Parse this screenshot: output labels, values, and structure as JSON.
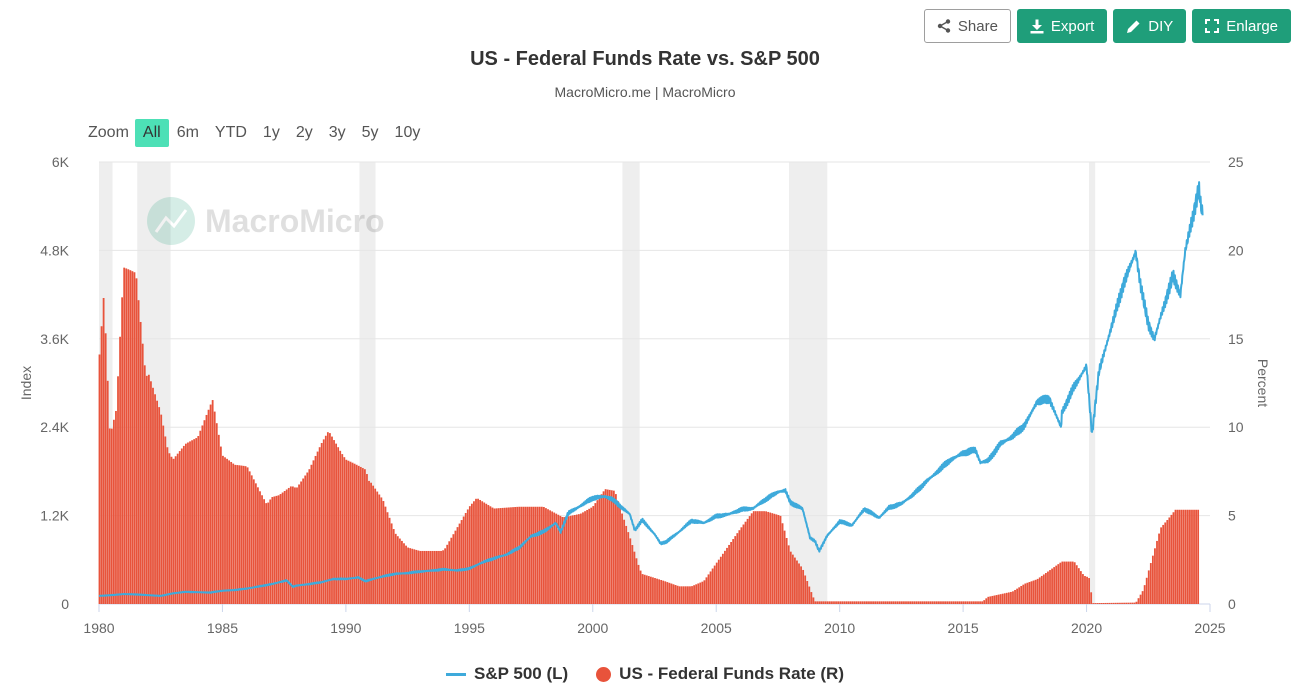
{
  "toolbar": {
    "share_label": "Share",
    "export_label": "Export",
    "diy_label": "DIY",
    "enlarge_label": "Enlarge"
  },
  "zoom": {
    "label": "Zoom",
    "options": [
      "All",
      "6m",
      "YTD",
      "1y",
      "2y",
      "3y",
      "5y",
      "10y"
    ],
    "active": "All"
  },
  "watermark": "MacroMicro",
  "colors": {
    "sp500": "#3eaadb",
    "fed_funds": "#e8533b",
    "recession": "#eeeeee",
    "accent": "#1f9e7a",
    "zoom_active": "#4de0b6"
  },
  "chart_data": {
    "type": "line",
    "title": "US - Federal Funds Rate vs. S&P 500",
    "subtitle": "MacroMicro.me | MacroMicro",
    "y_left_label": "Index",
    "y_right_label": "Percent",
    "x_ticks": [
      "1980",
      "1985",
      "1990",
      "1995",
      "2000",
      "2005",
      "2010",
      "2015",
      "2020",
      "2025"
    ],
    "y_left_ticks": [
      "0",
      "1.2K",
      "2.4K",
      "3.6K",
      "4.8K",
      "6K"
    ],
    "y_right_ticks": [
      "0",
      "5",
      "10",
      "15",
      "20",
      "25"
    ],
    "xlim": [
      1980,
      2025
    ],
    "ylim_left": [
      0,
      6000
    ],
    "ylim_right": [
      0,
      25
    ],
    "recessions": [
      [
        1980.0,
        1980.55
      ],
      [
        1981.55,
        1982.9
      ],
      [
        1990.55,
        1991.2
      ],
      [
        2001.2,
        2001.9
      ],
      [
        2007.95,
        2009.5
      ],
      [
        2020.1,
        2020.35
      ]
    ],
    "series": [
      {
        "name": "S&P 500 (L)",
        "axis": "left",
        "style": "line",
        "points": [
          [
            1980.0,
            110
          ],
          [
            1980.5,
            120
          ],
          [
            1981.0,
            135
          ],
          [
            1981.5,
            130
          ],
          [
            1982.0,
            120
          ],
          [
            1982.5,
            110
          ],
          [
            1983.0,
            145
          ],
          [
            1983.5,
            165
          ],
          [
            1984.0,
            160
          ],
          [
            1984.5,
            155
          ],
          [
            1985.0,
            180
          ],
          [
            1985.5,
            190
          ],
          [
            1986.0,
            210
          ],
          [
            1986.5,
            240
          ],
          [
            1987.0,
            270
          ],
          [
            1987.6,
            320
          ],
          [
            1987.85,
            235
          ],
          [
            1988.0,
            250
          ],
          [
            1988.5,
            270
          ],
          [
            1989.0,
            295
          ],
          [
            1989.5,
            340
          ],
          [
            1990.0,
            340
          ],
          [
            1990.5,
            360
          ],
          [
            1990.8,
            310
          ],
          [
            1991.0,
            330
          ],
          [
            1991.5,
            375
          ],
          [
            1992.0,
            410
          ],
          [
            1992.5,
            420
          ],
          [
            1993.0,
            440
          ],
          [
            1993.5,
            455
          ],
          [
            1994.0,
            470
          ],
          [
            1994.5,
            455
          ],
          [
            1995.0,
            480
          ],
          [
            1995.5,
            560
          ],
          [
            1996.0,
            620
          ],
          [
            1996.5,
            670
          ],
          [
            1997.0,
            760
          ],
          [
            1997.5,
            920
          ],
          [
            1998.0,
            980
          ],
          [
            1998.5,
            1100
          ],
          [
            1998.7,
            980
          ],
          [
            1999.0,
            1230
          ],
          [
            1999.5,
            1330
          ],
          [
            2000.0,
            1440
          ],
          [
            2000.5,
            1460
          ],
          [
            2000.75,
            1430
          ],
          [
            2001.0,
            1360
          ],
          [
            2001.5,
            1220
          ],
          [
            2001.7,
            1000
          ],
          [
            2002.0,
            1140
          ],
          [
            2002.5,
            950
          ],
          [
            2002.75,
            820
          ],
          [
            2003.0,
            850
          ],
          [
            2003.5,
            980
          ],
          [
            2004.0,
            1130
          ],
          [
            2004.5,
            1100
          ],
          [
            2005.0,
            1190
          ],
          [
            2005.5,
            1220
          ],
          [
            2006.0,
            1280
          ],
          [
            2006.5,
            1300
          ],
          [
            2007.0,
            1420
          ],
          [
            2007.5,
            1520
          ],
          [
            2007.8,
            1540
          ],
          [
            2008.0,
            1380
          ],
          [
            2008.5,
            1290
          ],
          [
            2008.8,
            900
          ],
          [
            2009.0,
            850
          ],
          [
            2009.17,
            720
          ],
          [
            2009.5,
            930
          ],
          [
            2010.0,
            1120
          ],
          [
            2010.5,
            1070
          ],
          [
            2011.0,
            1290
          ],
          [
            2011.6,
            1170
          ],
          [
            2012.0,
            1310
          ],
          [
            2012.5,
            1360
          ],
          [
            2013.0,
            1490
          ],
          [
            2013.5,
            1660
          ],
          [
            2014.0,
            1810
          ],
          [
            2014.5,
            1960
          ],
          [
            2015.0,
            2050
          ],
          [
            2015.5,
            2090
          ],
          [
            2015.7,
            1920
          ],
          [
            2016.0,
            1940
          ],
          [
            2016.5,
            2170
          ],
          [
            2017.0,
            2270
          ],
          [
            2017.5,
            2430
          ],
          [
            2018.0,
            2750
          ],
          [
            2018.5,
            2780
          ],
          [
            2018.97,
            2400
          ],
          [
            2019.0,
            2600
          ],
          [
            2019.5,
            2950
          ],
          [
            2020.0,
            3230
          ],
          [
            2020.22,
            2300
          ],
          [
            2020.5,
            3150
          ],
          [
            2021.0,
            3750
          ],
          [
            2021.5,
            4350
          ],
          [
            2021.99,
            4780
          ],
          [
            2022.2,
            4300
          ],
          [
            2022.5,
            3800
          ],
          [
            2022.75,
            3600
          ],
          [
            2023.0,
            3900
          ],
          [
            2023.5,
            4450
          ],
          [
            2023.8,
            4200
          ],
          [
            2024.0,
            4800
          ],
          [
            2024.3,
            5250
          ],
          [
            2024.55,
            5650
          ],
          [
            2024.63,
            5400
          ],
          [
            2024.7,
            5300
          ]
        ]
      },
      {
        "name": "US - Federal Funds Rate (R)",
        "axis": "right",
        "style": "column",
        "points": [
          [
            1980.0,
            13.8
          ],
          [
            1980.2,
            17.6
          ],
          [
            1980.45,
            9.5
          ],
          [
            1980.7,
            11.0
          ],
          [
            1981.0,
            19.1
          ],
          [
            1981.5,
            19.0
          ],
          [
            1981.9,
            13.2
          ],
          [
            1982.0,
            13.5
          ],
          [
            1982.5,
            11.5
          ],
          [
            1982.8,
            9.3
          ],
          [
            1983.0,
            8.7
          ],
          [
            1983.5,
            9.4
          ],
          [
            1984.0,
            9.6
          ],
          [
            1984.6,
            11.6
          ],
          [
            1985.0,
            8.4
          ],
          [
            1985.5,
            7.9
          ],
          [
            1986.0,
            7.9
          ],
          [
            1986.8,
            5.9
          ],
          [
            1987.0,
            6.4
          ],
          [
            1987.8,
            7.0
          ],
          [
            1988.0,
            6.8
          ],
          [
            1988.5,
            7.7
          ],
          [
            1989.0,
            9.1
          ],
          [
            1989.3,
            9.8
          ],
          [
            1989.8,
            8.6
          ],
          [
            1990.0,
            8.2
          ],
          [
            1990.8,
            7.8
          ],
          [
            1991.0,
            6.9
          ],
          [
            1991.5,
            5.9
          ],
          [
            1992.0,
            4.0
          ],
          [
            1992.5,
            3.2
          ],
          [
            1993.0,
            3.0
          ],
          [
            1993.9,
            3.0
          ],
          [
            1994.0,
            3.1
          ],
          [
            1994.5,
            4.3
          ],
          [
            1995.0,
            5.5
          ],
          [
            1995.3,
            6.0
          ],
          [
            1996.0,
            5.4
          ],
          [
            1997.0,
            5.5
          ],
          [
            1998.0,
            5.5
          ],
          [
            1998.8,
            4.9
          ],
          [
            1999.5,
            5.1
          ],
          [
            2000.0,
            5.5
          ],
          [
            2000.5,
            6.5
          ],
          [
            2000.9,
            6.4
          ],
          [
            2001.0,
            5.9
          ],
          [
            2001.5,
            3.8
          ],
          [
            2001.9,
            2.0
          ],
          [
            2002.0,
            1.7
          ],
          [
            2002.9,
            1.3
          ],
          [
            2003.0,
            1.25
          ],
          [
            2003.5,
            1.0
          ],
          [
            2004.0,
            1.0
          ],
          [
            2004.5,
            1.3
          ],
          [
            2005.0,
            2.3
          ],
          [
            2005.5,
            3.3
          ],
          [
            2006.0,
            4.3
          ],
          [
            2006.5,
            5.25
          ],
          [
            2007.0,
            5.25
          ],
          [
            2007.6,
            5.0
          ],
          [
            2008.0,
            3.0
          ],
          [
            2008.5,
            2.0
          ],
          [
            2008.9,
            0.5
          ],
          [
            2009.0,
            0.15
          ],
          [
            2015.8,
            0.15
          ],
          [
            2016.0,
            0.4
          ],
          [
            2017.0,
            0.7
          ],
          [
            2017.5,
            1.15
          ],
          [
            2018.0,
            1.4
          ],
          [
            2018.5,
            1.9
          ],
          [
            2019.0,
            2.4
          ],
          [
            2019.5,
            2.4
          ],
          [
            2019.9,
            1.6
          ],
          [
            2020.1,
            1.5
          ],
          [
            2020.25,
            0.05
          ],
          [
            2022.0,
            0.08
          ],
          [
            2022.3,
            0.8
          ],
          [
            2022.6,
            2.3
          ],
          [
            2022.9,
            3.8
          ],
          [
            2023.0,
            4.3
          ],
          [
            2023.3,
            4.8
          ],
          [
            2023.6,
            5.33
          ],
          [
            2024.6,
            5.33
          ]
        ]
      }
    ]
  }
}
